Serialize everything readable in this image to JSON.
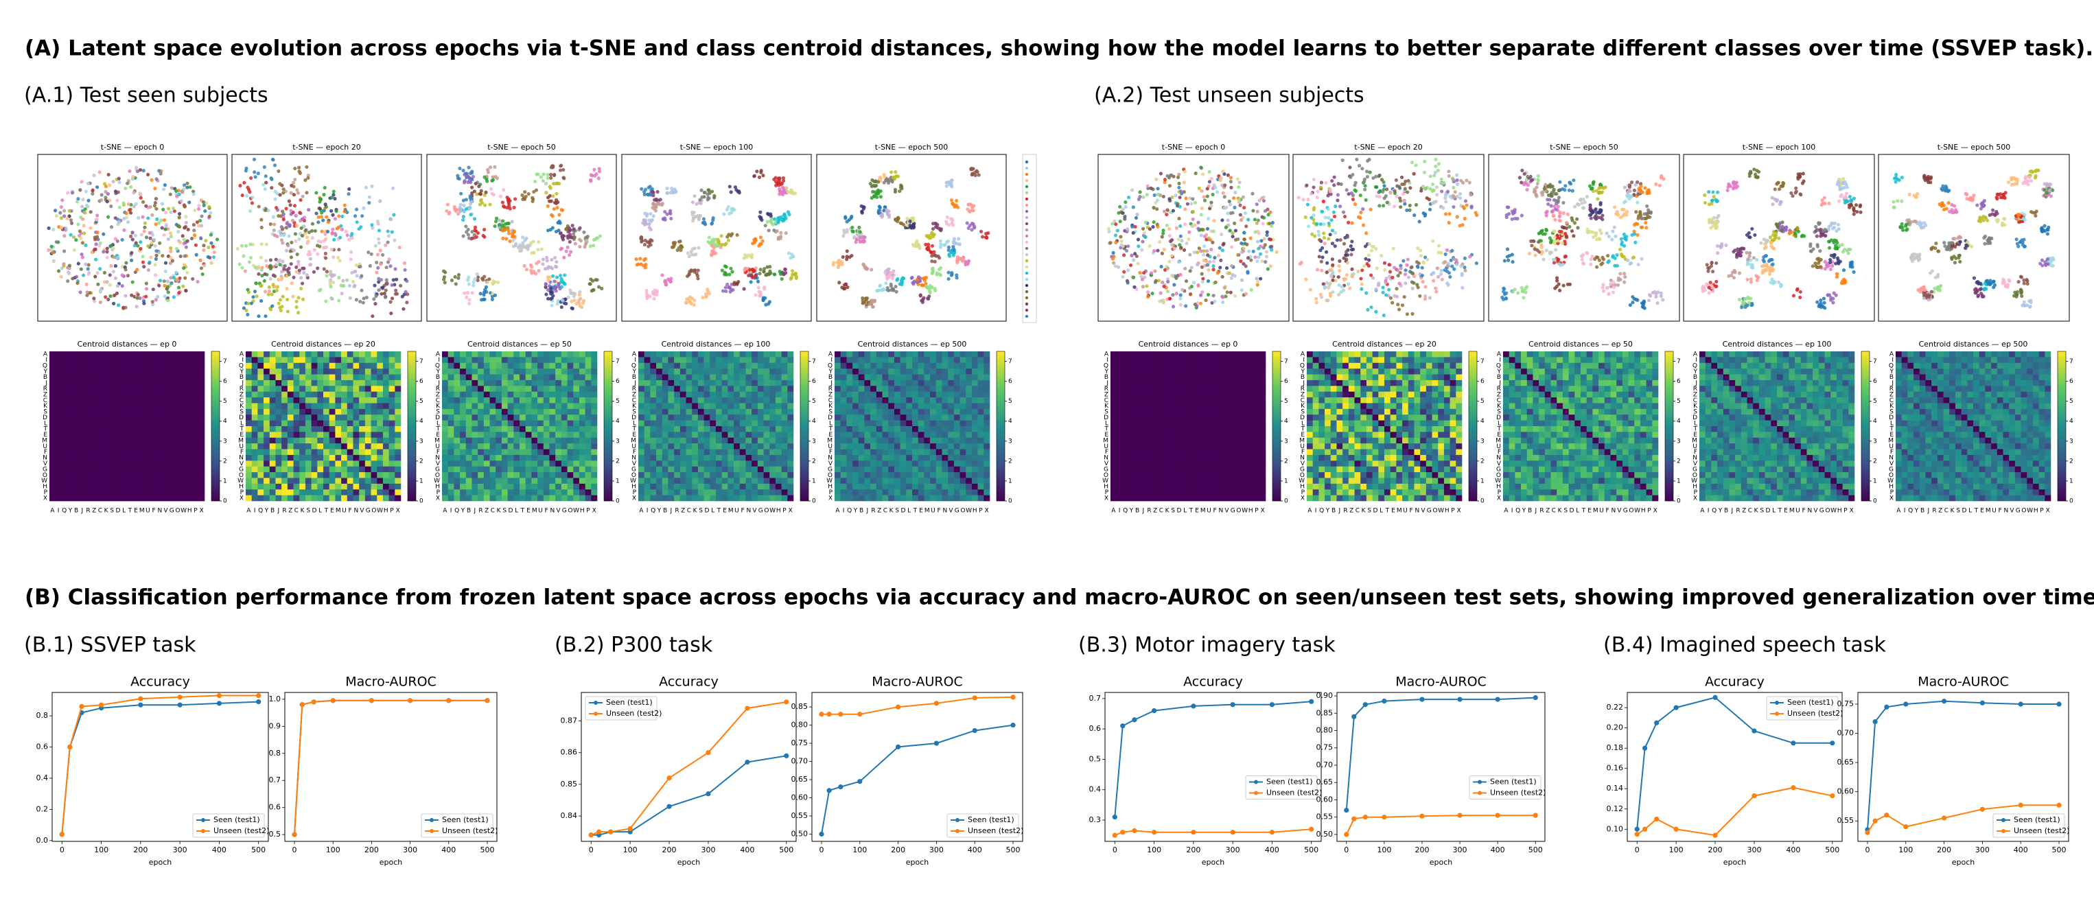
{
  "title_a": "(A) Latent space evolution across epochs via t-SNE and class centroid distances, showing how the model learns to better separate different classes over time (SSVEP task).",
  "panel_a1": "(A.1) Test seen subjects",
  "panel_a2": "(A.2) Test unseen subjects",
  "tsne_titles": [
    "t-SNE — epoch 0",
    "t-SNE — epoch 20",
    "t-SNE — epoch 50",
    "t-SNE — epoch 100",
    "t-SNE — epoch 500"
  ],
  "heatmap_titles": [
    "Centroid distances — ep 0",
    "Centroid distances — ep 20",
    "Centroid distances — ep 50",
    "Centroid distances — ep 100",
    "Centroid distances — ep 500"
  ],
  "class_labels": [
    "A",
    "I",
    "Q",
    "Y",
    "B",
    "J",
    "R",
    "Z",
    "C",
    "K",
    "S",
    "D",
    "L",
    "T",
    "E",
    "M",
    "U",
    "F",
    "N",
    "V",
    "G",
    "O",
    "W",
    "H",
    "P",
    "X"
  ],
  "colorbar_lim": [
    0,
    7.5
  ],
  "colorbar_ticks": [
    0,
    1,
    2,
    3,
    4,
    5,
    6,
    7
  ],
  "title_b": "(B) Classification performance from frozen latent space across epochs via accuracy and macro-AUROC on seen/unseen test sets, showing improved generalization over time.",
  "panels_b": [
    "(B.1) SSVEP task",
    "(B.2) P300 task",
    "(B.3) Motor imagery task",
    "(B.4) Imagined speech task"
  ],
  "chart_data": [
    {
      "type": "line",
      "title": "Accuracy",
      "x_label": "epoch",
      "x": [
        0,
        20,
        50,
        100,
        200,
        300,
        400,
        500
      ],
      "xlim": [
        -25,
        525
      ],
      "xticks": [
        0,
        100,
        200,
        300,
        400,
        500
      ],
      "ylim": [
        -0.005,
        0.95
      ],
      "yticks": [
        {
          "value": 0,
          "label": "0.0"
        },
        0.2,
        0.4,
        0.6,
        0.8
      ],
      "legend": "lower right",
      "series": [
        {
          "name": "Seen (test1)",
          "color": "#1f77b4",
          "values": [
            0.04,
            0.6,
            0.82,
            0.85,
            0.87,
            0.87,
            0.88,
            0.89
          ]
        },
        {
          "name": "Unseen (test2)",
          "color": "#ff7f0e",
          "values": [
            0.04,
            0.6,
            0.86,
            0.87,
            0.91,
            0.92,
            0.93,
            0.93
          ]
        }
      ]
    },
    {
      "type": "line",
      "title": "Macro-AUROC",
      "x_label": "epoch",
      "x": [
        0,
        20,
        50,
        100,
        200,
        300,
        400,
        500
      ],
      "xlim": [
        -25,
        525
      ],
      "xticks": [
        0,
        100,
        200,
        300,
        400,
        500
      ],
      "ylim": [
        0.475,
        1.025
      ],
      "yticks": [
        0.5,
        0.6,
        0.7,
        0.8,
        0.9,
        {
          "value": 1,
          "label": "1.0"
        }
      ],
      "legend": "lower right",
      "series": [
        {
          "name": "Seen (test1)",
          "color": "#1f77b4",
          "values": [
            0.5,
            0.98,
            0.99,
            0.995,
            0.995,
            0.995,
            0.995,
            0.995
          ]
        },
        {
          "name": "Unseen (test2)",
          "color": "#ff7f0e",
          "values": [
            0.5,
            0.98,
            0.99,
            0.995,
            0.995,
            0.995,
            0.995,
            0.995
          ]
        }
      ]
    },
    {
      "type": "line",
      "title": "Accuracy",
      "x_label": "epoch",
      "x": [
        0,
        20,
        50,
        100,
        200,
        300,
        400,
        500
      ],
      "xlim": [
        -25,
        525
      ],
      "xticks": [
        0,
        100,
        200,
        300,
        400,
        500
      ],
      "ylim": [
        0.832,
        0.879
      ],
      "yticks": [
        0.84,
        0.85,
        0.86,
        0.87
      ],
      "legend": "upper left",
      "series": [
        {
          "name": "Seen (test1)",
          "color": "#1f77b4",
          "values": [
            0.834,
            0.834,
            0.835,
            0.835,
            0.843,
            0.847,
            0.857,
            0.859
          ]
        },
        {
          "name": "Unseen (test2)",
          "color": "#ff7f0e",
          "values": [
            0.834,
            0.835,
            0.835,
            0.836,
            0.852,
            0.86,
            0.874,
            0.876
          ]
        }
      ]
    },
    {
      "type": "line",
      "title": "Macro-AUROC",
      "x_label": "epoch",
      "x": [
        0,
        20,
        50,
        100,
        200,
        300,
        400,
        500
      ],
      "xlim": [
        -25,
        525
      ],
      "xticks": [
        0,
        100,
        200,
        300,
        400,
        500
      ],
      "ylim": [
        0.48,
        0.89
      ],
      "yticks": [
        {
          "value": 0.5,
          "label": "0.50"
        },
        0.55,
        {
          "value": 0.6,
          "label": "0.60"
        },
        0.65,
        {
          "value": 0.7,
          "label": "0.70"
        },
        0.75,
        {
          "value": 0.8,
          "label": "0.80"
        },
        0.85
      ],
      "legend": "lower right",
      "series": [
        {
          "name": "Seen (test1)",
          "color": "#1f77b4",
          "values": [
            0.5,
            0.62,
            0.63,
            0.645,
            0.74,
            0.75,
            0.785,
            0.8
          ]
        },
        {
          "name": "Unseen (test2)",
          "color": "#ff7f0e",
          "values": [
            0.83,
            0.83,
            0.83,
            0.83,
            0.85,
            0.86,
            0.875,
            0.877
          ]
        }
      ]
    },
    {
      "type": "line",
      "title": "Accuracy",
      "x_label": "epoch",
      "x": [
        0,
        20,
        50,
        100,
        200,
        300,
        400,
        500
      ],
      "xlim": [
        -25,
        525
      ],
      "xticks": [
        0,
        100,
        200,
        300,
        400,
        500
      ],
      "ylim": [
        0.23,
        0.72
      ],
      "yticks": [
        0.3,
        0.4,
        0.5,
        0.6,
        0.7
      ],
      "legend": "center right",
      "series": [
        {
          "name": "Seen (test1)",
          "color": "#1f77b4",
          "values": [
            0.31,
            0.61,
            0.63,
            0.66,
            0.675,
            0.68,
            0.68,
            0.69
          ]
        },
        {
          "name": "Unseen (test2)",
          "color": "#ff7f0e",
          "values": [
            0.25,
            0.26,
            0.265,
            0.26,
            0.26,
            0.26,
            0.26,
            0.27
          ]
        }
      ]
    },
    {
      "type": "line",
      "title": "Macro-AUROC",
      "x_label": "epoch",
      "x": [
        0,
        20,
        50,
        100,
        200,
        300,
        400,
        500
      ],
      "xlim": [
        -25,
        525
      ],
      "xticks": [
        0,
        100,
        200,
        300,
        400,
        500
      ],
      "ylim": [
        0.48,
        0.91
      ],
      "yticks": [
        {
          "value": 0.5,
          "label": "0.50"
        },
        0.55,
        {
          "value": 0.6,
          "label": "0.60"
        },
        0.65,
        {
          "value": 0.7,
          "label": "0.70"
        },
        0.75,
        {
          "value": 0.8,
          "label": "0.80"
        },
        0.85,
        {
          "value": 0.9,
          "label": "0.90"
        }
      ],
      "legend": "center right",
      "series": [
        {
          "name": "Seen (test1)",
          "color": "#1f77b4",
          "values": [
            0.57,
            0.84,
            0.875,
            0.885,
            0.89,
            0.89,
            0.89,
            0.895
          ]
        },
        {
          "name": "Unseen (test2)",
          "color": "#ff7f0e",
          "values": [
            0.5,
            0.545,
            0.55,
            0.55,
            0.553,
            0.555,
            0.555,
            0.555
          ]
        }
      ]
    },
    {
      "type": "line",
      "title": "Accuracy",
      "x_label": "epoch",
      "x": [
        0,
        20,
        50,
        100,
        200,
        300,
        400,
        500
      ],
      "xlim": [
        -25,
        525
      ],
      "xticks": [
        0,
        100,
        200,
        300,
        400,
        500
      ],
      "ylim": [
        0.088,
        0.235
      ],
      "yticks": [
        {
          "value": 0.1,
          "label": "0.10"
        },
        0.12,
        0.14,
        0.16,
        0.18,
        {
          "value": 0.2,
          "label": "0.20"
        },
        0.22
      ],
      "legend": "upper right",
      "series": [
        {
          "name": "Seen (test1)",
          "color": "#1f77b4",
          "values": [
            0.1,
            0.18,
            0.205,
            0.22,
            0.23,
            0.197,
            0.185,
            0.185
          ]
        },
        {
          "name": "Unseen (test2)",
          "color": "#ff7f0e",
          "values": [
            0.095,
            0.1,
            0.11,
            0.1,
            0.094,
            0.133,
            0.141,
            0.133
          ]
        }
      ]
    },
    {
      "type": "line",
      "title": "Macro-AUROC",
      "x_label": "epoch",
      "x": [
        0,
        20,
        50,
        100,
        200,
        300,
        400,
        500
      ],
      "xlim": [
        -25,
        525
      ],
      "xticks": [
        0,
        100,
        200,
        300,
        400,
        500
      ],
      "ylim": [
        0.515,
        0.77
      ],
      "yticks": [
        0.55,
        {
          "value": 0.6,
          "label": "0.60"
        },
        0.65,
        {
          "value": 0.7,
          "label": "0.70"
        },
        0.75
      ],
      "legend": "lower right",
      "series": [
        {
          "name": "Seen (test1)",
          "color": "#1f77b4",
          "values": [
            0.535,
            0.72,
            0.745,
            0.75,
            0.755,
            0.752,
            0.75,
            0.75
          ]
        },
        {
          "name": "Unseen (test2)",
          "color": "#ff7f0e",
          "values": [
            0.53,
            0.55,
            0.56,
            0.54,
            0.555,
            0.57,
            0.577,
            0.577
          ]
        }
      ]
    }
  ]
}
